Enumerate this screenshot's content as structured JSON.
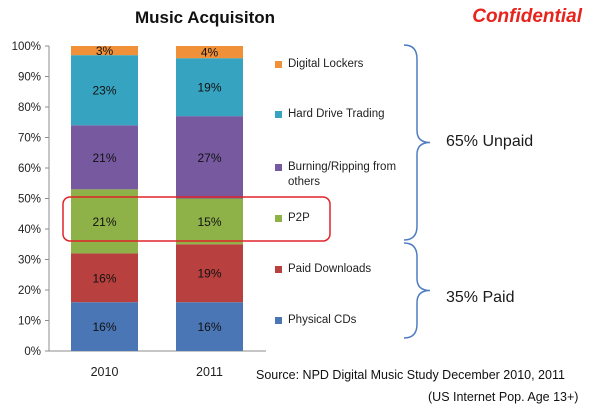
{
  "title": "Music Acquisiton",
  "confidential_label": "Confidential",
  "source_line": "Source:  NPD Digital Music Study December  2010, 2011",
  "source_subline": "(US Internet Pop. Age 13+)",
  "brace_labels": {
    "unpaid": "65% Unpaid",
    "paid": "35% Paid"
  },
  "colors": {
    "physical_cds": "#4a76b5",
    "paid_downloads": "#b8413f",
    "p2p": "#8eb148",
    "burning_ripping": "#7759a0",
    "hard_drive_trading": "#36a3c0",
    "digital_lockers": "#f0913a",
    "highlight": "#e0242a",
    "brace": "#4f7dc2"
  },
  "chart_data": {
    "type": "bar",
    "stacked": true,
    "categories": [
      "2010",
      "2011"
    ],
    "series": [
      {
        "name": "Physical CDs",
        "values": [
          16,
          16
        ],
        "labels": [
          "16%",
          "16%"
        ]
      },
      {
        "name": "Paid Downloads",
        "values": [
          16,
          19
        ],
        "labels": [
          "16%",
          "19%"
        ]
      },
      {
        "name": "P2P",
        "values": [
          21,
          15
        ],
        "labels": [
          "21%",
          "15%"
        ]
      },
      {
        "name": "Burning/Ripping from others",
        "values": [
          21,
          27
        ],
        "labels": [
          "21%",
          "27%"
        ]
      },
      {
        "name": "Hard Drive Trading",
        "values": [
          23,
          19
        ],
        "labels": [
          "23%",
          "19%"
        ]
      },
      {
        "name": "Digital Lockers",
        "values": [
          3,
          4
        ],
        "labels": [
          "3%",
          "4%"
        ]
      }
    ],
    "legend_order": [
      "Digital Lockers",
      "Hard Drive Trading",
      "Burning/Ripping from others",
      "P2P",
      "Paid Downloads",
      "Physical CDs"
    ],
    "ylim": [
      0,
      100
    ],
    "yticks": [
      "0%",
      "10%",
      "20%",
      "30%",
      "40%",
      "50%",
      "60%",
      "70%",
      "80%",
      "90%",
      "100%"
    ],
    "grid": false,
    "legend_position": "right",
    "highlighted_series": "P2P"
  }
}
